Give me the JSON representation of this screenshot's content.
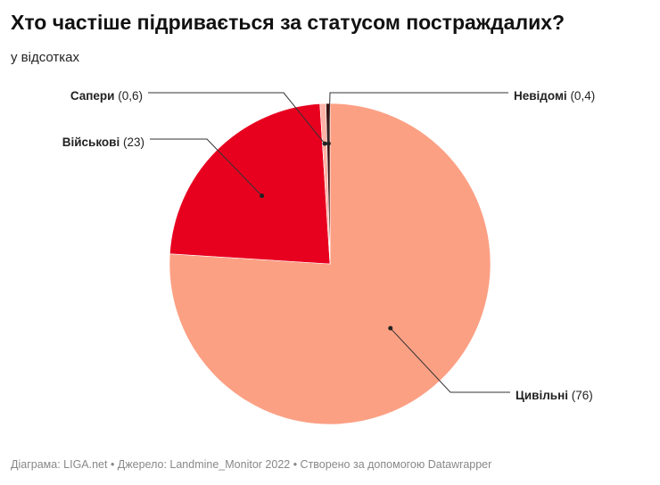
{
  "chart_data": {
    "type": "pie",
    "title": "Хто частіше підривається за статусом постраждалих?",
    "subtitle": "у відсотках",
    "slices": [
      {
        "label": "Цивільні",
        "value": 76,
        "value_text": "(76)",
        "color": "#fca084"
      },
      {
        "label": "Військові",
        "value": 23,
        "value_text": "(23)",
        "color": "#e8001f"
      },
      {
        "label": "Сапери",
        "value": 0.6,
        "value_text": "(0,6)",
        "color": "#ffb3a6"
      },
      {
        "label": "Невідомі",
        "value": 0.4,
        "value_text": "(0,4)",
        "color": "#3a1010"
      }
    ]
  },
  "footer": "Діаграма: LIGA.net • Джерело: Landmine_Monitor 2022 • Створено за допомогою Datawrapper"
}
